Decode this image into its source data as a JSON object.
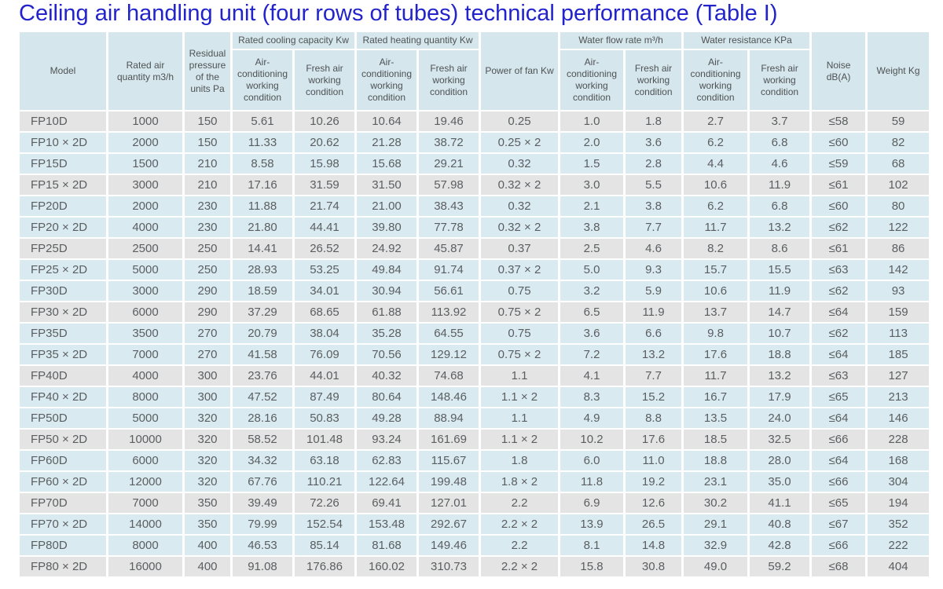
{
  "title": "Ceiling air handling unit (four rows of tubes) technical performance (Table I)",
  "colors": {
    "title_blue": "#2323cb",
    "header_bg": "#d5e6ec",
    "row_blue_bg": "#d9ebf1",
    "row_gray_bg": "#e4e4e4",
    "text_gray": "#5b5e60"
  },
  "table": {
    "headers": {
      "model": "Model",
      "rated_air_quantity": "Rated air quantity m3/h",
      "residual_pressure": "Residual pressure of the units Pa",
      "cooling_group": "Rated cooling capacity Kw",
      "heating_group": "Rated heating quantity Kw",
      "power_of_fan": "Power of fan Kw",
      "water_flow_group": "Water flow rate m³/h",
      "water_resistance_group": "Water resistance KPa",
      "noise": "Noise dB(A)",
      "weight": "Weight Kg",
      "air_conditioning_condition": "Air-conditioning working condition",
      "fresh_air_condition": "Fresh air working condition"
    },
    "column_keys": [
      "model",
      "rated-air-quantity",
      "residual-pressure",
      "cooling-ac-condition",
      "cooling-fresh-air",
      "heating-ac-condition",
      "heating-fresh-air",
      "power-of-fan",
      "water-flow-ac-condition",
      "water-flow-fresh-air",
      "water-resistance-ac-condition",
      "water-resistance-fresh-air",
      "noise",
      "weight"
    ],
    "rows": [
      [
        "FP10D",
        "1000",
        "150",
        "5.61",
        "10.26",
        "10.64",
        "19.46",
        "0.25",
        "1.0",
        "1.8",
        "2.7",
        "3.7",
        "≤58",
        "59"
      ],
      [
        "FP10 × 2D",
        "2000",
        "150",
        "11.33",
        "20.62",
        "21.28",
        "38.72",
        "0.25 × 2",
        "2.0",
        "3.6",
        "6.2",
        "6.8",
        "≤60",
        "82"
      ],
      [
        "FP15D",
        "1500",
        "210",
        "8.58",
        "15.98",
        "15.68",
        "29.21",
        "0.32",
        "1.5",
        "2.8",
        "4.4",
        "4.6",
        "≤59",
        "68"
      ],
      [
        "FP15 × 2D",
        "3000",
        "210",
        "17.16",
        "31.59",
        "31.50",
        "57.98",
        "0.32 × 2",
        "3.0",
        "5.5",
        "10.6",
        "11.9",
        "≤61",
        "102"
      ],
      [
        "FP20D",
        "2000",
        "230",
        "11.88",
        "21.74",
        "21.00",
        "38.43",
        "0.32",
        "2.1",
        "3.8",
        "6.2",
        "6.8",
        "≤60",
        "80"
      ],
      [
        "FP20 × 2D",
        "4000",
        "230",
        "21.80",
        "44.41",
        "39.80",
        "77.78",
        "0.32 × 2",
        "3.8",
        "7.7",
        "11.7",
        "13.2",
        "≤62",
        "122"
      ],
      [
        "FP25D",
        "2500",
        "250",
        "14.41",
        "26.52",
        "24.92",
        "45.87",
        "0.37",
        "2.5",
        "4.6",
        "8.2",
        "8.6",
        "≤61",
        "86"
      ],
      [
        "FP25 × 2D",
        "5000",
        "250",
        "28.93",
        "53.25",
        "49.84",
        "91.74",
        "0.37 × 2",
        "5.0",
        "9.3",
        "15.7",
        "15.5",
        "≤63",
        "142"
      ],
      [
        "FP30D",
        "3000",
        "290",
        "18.59",
        "34.01",
        "30.94",
        "56.61",
        "0.75",
        "3.2",
        "5.9",
        "10.6",
        "11.9",
        "≤62",
        "93"
      ],
      [
        "FP30 × 2D",
        "6000",
        "290",
        "37.29",
        "68.65",
        "61.88",
        "113.92",
        "0.75 × 2",
        "6.5",
        "11.9",
        "13.7",
        "14.7",
        "≤64",
        "159"
      ],
      [
        "FP35D",
        "3500",
        "270",
        "20.79",
        "38.04",
        "35.28",
        "64.55",
        "0.75",
        "3.6",
        "6.6",
        "9.8",
        "10.7",
        "≤62",
        "113"
      ],
      [
        "FP35 × 2D",
        "7000",
        "270",
        "41.58",
        "76.09",
        "70.56",
        "129.12",
        "0.75 × 2",
        "7.2",
        "13.2",
        "17.6",
        "18.8",
        "≤64",
        "185"
      ],
      [
        "FP40D",
        "4000",
        "300",
        "23.76",
        "44.01",
        "40.32",
        "74.68",
        "1.1",
        "4.1",
        "7.7",
        "11.7",
        "13.2",
        "≤63",
        "127"
      ],
      [
        "FP40 × 2D",
        "8000",
        "300",
        "47.52",
        "87.49",
        "80.64",
        "148.46",
        "1.1 × 2",
        "8.3",
        "15.2",
        "16.7",
        "17.9",
        "≤65",
        "213"
      ],
      [
        "FP50D",
        "5000",
        "320",
        "28.16",
        "50.83",
        "49.28",
        "88.94",
        "1.1",
        "4.9",
        "8.8",
        "13.5",
        "24.0",
        "≤64",
        "146"
      ],
      [
        "FP50 × 2D",
        "10000",
        "320",
        "58.52",
        "101.48",
        "93.24",
        "161.69",
        "1.1 × 2",
        "10.2",
        "17.6",
        "18.5",
        "32.5",
        "≤66",
        "228"
      ],
      [
        "FP60D",
        "6000",
        "320",
        "34.32",
        "63.18",
        "62.83",
        "115.67",
        "1.8",
        "6.0",
        "11.0",
        "18.8",
        "28.0",
        "≤64",
        "168"
      ],
      [
        "FP60 × 2D",
        "12000",
        "320",
        "67.76",
        "110.21",
        "122.64",
        "199.48",
        "1.8 × 2",
        "11.8",
        "19.2",
        "23.1",
        "35.0",
        "≤66",
        "304"
      ],
      [
        "FP70D",
        "7000",
        "350",
        "39.49",
        "72.26",
        "69.41",
        "127.01",
        "2.2",
        "6.9",
        "12.6",
        "30.2",
        "41.1",
        "≤65",
        "194"
      ],
      [
        "FP70 × 2D",
        "14000",
        "350",
        "79.99",
        "152.54",
        "153.48",
        "292.67",
        "2.2 × 2",
        "13.9",
        "26.5",
        "29.1",
        "40.8",
        "≤67",
        "352"
      ],
      [
        "FP80D",
        "8000",
        "400",
        "46.53",
        "85.14",
        "81.68",
        "149.46",
        "2.2",
        "8.1",
        "14.8",
        "32.9",
        "42.8",
        "≤66",
        "222"
      ],
      [
        "FP80 × 2D",
        "16000",
        "400",
        "91.08",
        "176.86",
        "160.02",
        "310.73",
        "2.2 × 2",
        "15.8",
        "30.8",
        "49.0",
        "59.2",
        "≤68",
        "404"
      ]
    ]
  }
}
